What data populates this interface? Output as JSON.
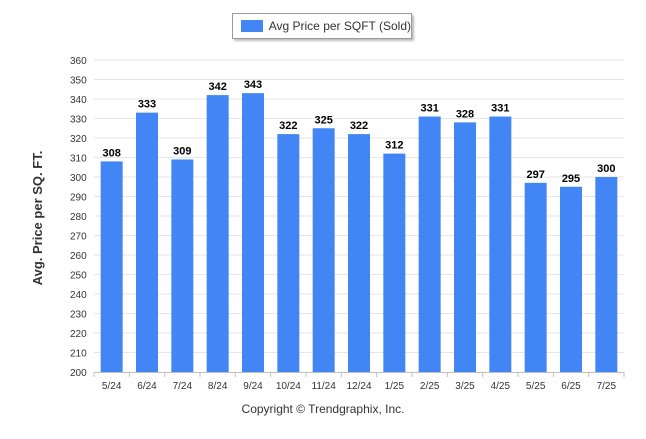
{
  "colors": {
    "bar": "#4285f4",
    "grid": "#e6e6e6",
    "axis": "#c0c0c0",
    "text": "#333333"
  },
  "legend": {
    "label": "Avg Price per SQFT (Sold)"
  },
  "footer": {
    "copyright": "Copyright © Trendgraphix, Inc."
  },
  "chart_data": {
    "type": "bar",
    "categories": [
      "5/24",
      "6/24",
      "7/24",
      "8/24",
      "9/24",
      "10/24",
      "11/24",
      "12/24",
      "1/25",
      "2/25",
      "3/25",
      "4/25",
      "5/25",
      "6/25",
      "7/25"
    ],
    "series": [
      {
        "name": "Avg Price per SQFT (Sold)",
        "values": [
          308,
          333,
          309,
          342,
          343,
          322,
          325,
          322,
          312,
          331,
          328,
          331,
          297,
          295,
          300
        ]
      }
    ],
    "ylabel": "Avg. Price per SQ. FT.",
    "ylim": [
      200,
      360
    ],
    "yticks": [
      200,
      210,
      220,
      230,
      240,
      250,
      260,
      270,
      280,
      290,
      300,
      310,
      320,
      330,
      340,
      350,
      360
    ],
    "grid": true,
    "legend_position": "top"
  }
}
